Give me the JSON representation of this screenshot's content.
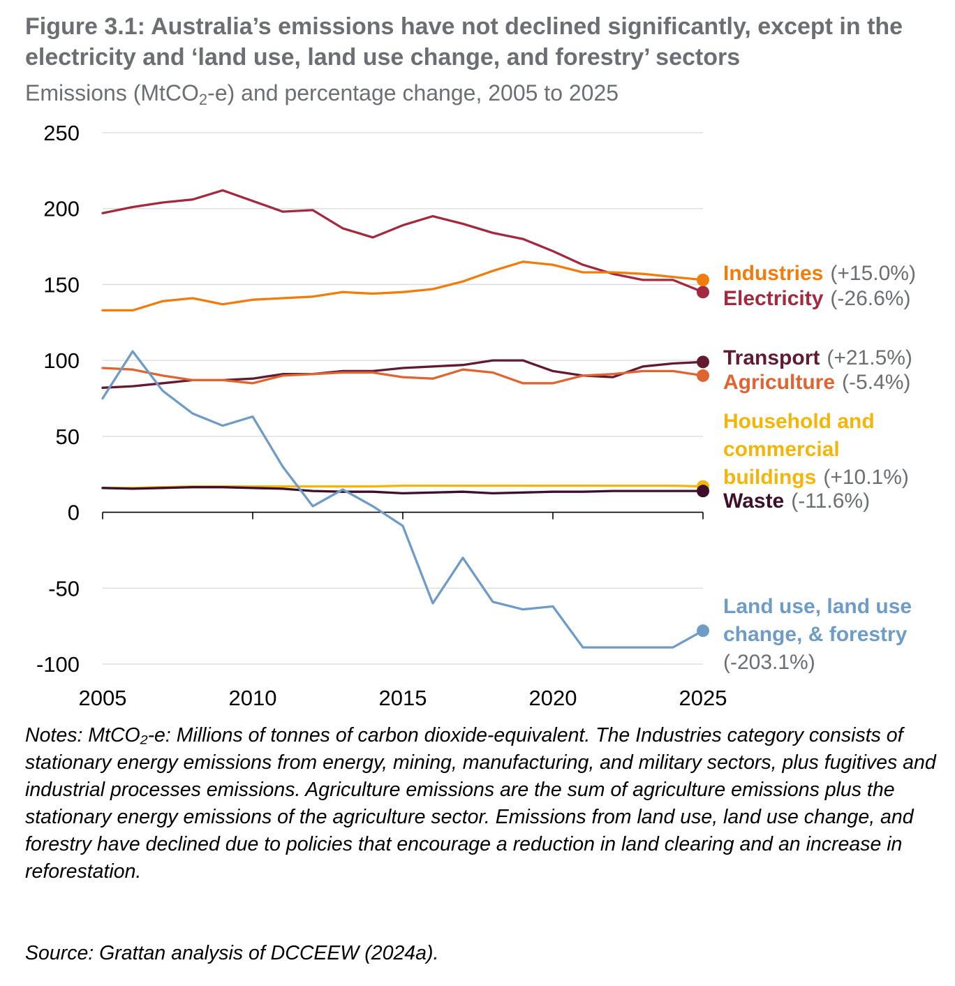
{
  "figure": {
    "title": "Figure 3.1: Australia’s emissions have not declined significantly, except in the electricity and ‘land use, land use change, and forestry’ sectors",
    "subtitle_pre": "Emissions (MtCO",
    "subtitle_sub": "2",
    "subtitle_post": "-e) and percentage change, 2005 to 2025",
    "notes": "Notes: MtCO₂-e: Millions of tonnes of carbon dioxide-equivalent. The Industries category consists of stationary energy emissions from energy, mining, manufacturing, and military sectors, plus fugitives and industrial processes emissions. Agriculture emissions are the sum of agriculture emissions plus the stationary energy emissions of the agriculture sector. Emissions from land use, land use change, and forestry have declined due to policies that encourage a reduction in land clearing and an increase in reforestation.",
    "source": "Source: Grattan analysis of DCCEEW (2024a)."
  },
  "chart_data": {
    "type": "line",
    "x": [
      2005,
      2006,
      2007,
      2008,
      2009,
      2010,
      2011,
      2012,
      2013,
      2014,
      2015,
      2016,
      2017,
      2018,
      2019,
      2020,
      2021,
      2022,
      2023,
      2024,
      2025
    ],
    "xticks": [
      "2005",
      "2010",
      "2015",
      "2020",
      "2025"
    ],
    "yticks": [
      "-100",
      "-50",
      "0",
      "50",
      "100",
      "150",
      "200",
      "250"
    ],
    "xlim": [
      2005,
      2025
    ],
    "ylim": [
      -100,
      250
    ],
    "grid": "horizontal",
    "legend": "direct labels at right end of each line",
    "series": [
      {
        "name": "Electricity",
        "change": "(-26.6%)",
        "color": "#a3293f",
        "values": [
          197,
          201,
          204,
          206,
          212,
          205,
          198,
          199,
          187,
          181,
          189,
          195,
          190,
          184,
          180,
          172,
          163,
          157,
          153,
          153,
          145
        ]
      },
      {
        "name": "Industries",
        "change": "(+15.0%)",
        "color": "#f07c0c",
        "values": [
          133,
          133,
          139,
          141,
          137,
          140,
          141,
          142,
          145,
          144,
          145,
          147,
          152,
          159,
          165,
          163,
          158,
          158,
          157,
          155,
          153
        ]
      },
      {
        "name": "Transport",
        "change": "(+21.5%)",
        "color": "#621a2f",
        "values": [
          82,
          83,
          85,
          87,
          87,
          88,
          91,
          91,
          93,
          93,
          95,
          96,
          97,
          100,
          100,
          93,
          90,
          89,
          96,
          98,
          99
        ]
      },
      {
        "name": "Agriculture",
        "change": "(-5.4%)",
        "color": "#e06430",
        "values": [
          95,
          94,
          90,
          87,
          87,
          85,
          90,
          91,
          92,
          92,
          89,
          88,
          94,
          92,
          85,
          85,
          90,
          91,
          93,
          93,
          90
        ]
      },
      {
        "name": "Household and commercial buildings",
        "change": "(+10.1%)",
        "color": "#f4b50b",
        "values": [
          16,
          16,
          16.5,
          17,
          17,
          17,
          17,
          17,
          17,
          17,
          17.5,
          17.5,
          17.5,
          17.5,
          17.5,
          17.5,
          17.5,
          17.5,
          17.5,
          17.5,
          17
        ]
      },
      {
        "name": "Waste",
        "change": "(-11.6%)",
        "color": "#3c0f2b",
        "values": [
          16,
          15.5,
          16,
          16.5,
          16.5,
          16,
          15.5,
          14,
          13.5,
          13.5,
          12.5,
          13,
          13.5,
          12.5,
          13,
          13.5,
          13.5,
          14,
          14,
          14,
          14
        ]
      },
      {
        "name": "Land use, land use change, & forestry",
        "change": "(-203.1%)",
        "color": "#6f9cc6",
        "values": [
          75,
          106,
          80,
          65,
          57,
          63,
          30,
          4,
          15,
          4,
          -9,
          -60,
          -30,
          -59,
          -64,
          -62,
          -89,
          -89,
          -89,
          -89,
          -78
        ]
      }
    ],
    "labels": [
      {
        "series": 0,
        "lines": [
          "Electricity"
        ],
        "change": "(-26.6%)"
      },
      {
        "series": 1,
        "lines": [
          "Industries"
        ],
        "change": "(+15.0%)"
      },
      {
        "series": 2,
        "lines": [
          "Transport"
        ],
        "change": "(+21.5%)"
      },
      {
        "series": 3,
        "lines": [
          "Agriculture"
        ],
        "change": "(-5.4%)"
      },
      {
        "series": 4,
        "lines": [
          "Household and",
          "commercial",
          "buildings"
        ],
        "change": "(+10.1%)"
      },
      {
        "series": 5,
        "lines": [
          "Waste"
        ],
        "change": "(-11.6%)"
      },
      {
        "series": 6,
        "lines": [
          "Land use, land use",
          "change, & forestry"
        ],
        "change": "(-203.1%)"
      }
    ]
  }
}
